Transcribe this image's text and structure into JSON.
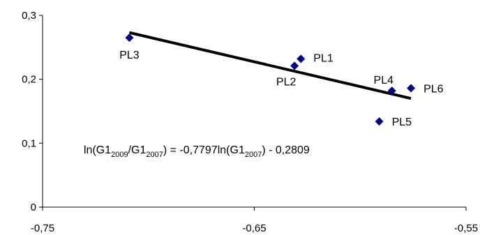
{
  "chart_data": {
    "type": "scatter",
    "title": "",
    "xlabel": "",
    "ylabel": "",
    "xlim": [
      -0.75,
      -0.55
    ],
    "ylim": [
      0,
      0.3
    ],
    "x_ticks": [
      "-0,75",
      "-0,65",
      "-0,55"
    ],
    "x_tick_values": [
      -0.75,
      -0.65,
      -0.55
    ],
    "y_ticks": [
      "0",
      "0,1",
      "0,2",
      "0,3"
    ],
    "y_tick_values": [
      0,
      0.1,
      0.2,
      0.3
    ],
    "grid": false,
    "marker_color": "#000080",
    "trendline_color": "#000000",
    "points": [
      {
        "label": "PL1",
        "x": -0.628,
        "y": 0.232
      },
      {
        "label": "PL2",
        "x": -0.631,
        "y": 0.221
      },
      {
        "label": "PL3",
        "x": -0.709,
        "y": 0.265
      },
      {
        "label": "PL4",
        "x": -0.585,
        "y": 0.182
      },
      {
        "label": "PL5",
        "x": -0.591,
        "y": 0.134
      },
      {
        "label": "PL6",
        "x": -0.576,
        "y": 0.186
      }
    ],
    "trendline": {
      "slope": -0.7797,
      "intercept": -0.2809,
      "x_range": [
        -0.709,
        -0.576
      ]
    },
    "equation": {
      "lhs_pre": "ln(G1",
      "sub1": "2009",
      "mid": "/G1",
      "sub2": "2007",
      "rhs_pre": ") = -0,7797ln(G1",
      "sub3": "2007",
      "rhs_post": ") - 0,2809"
    }
  }
}
